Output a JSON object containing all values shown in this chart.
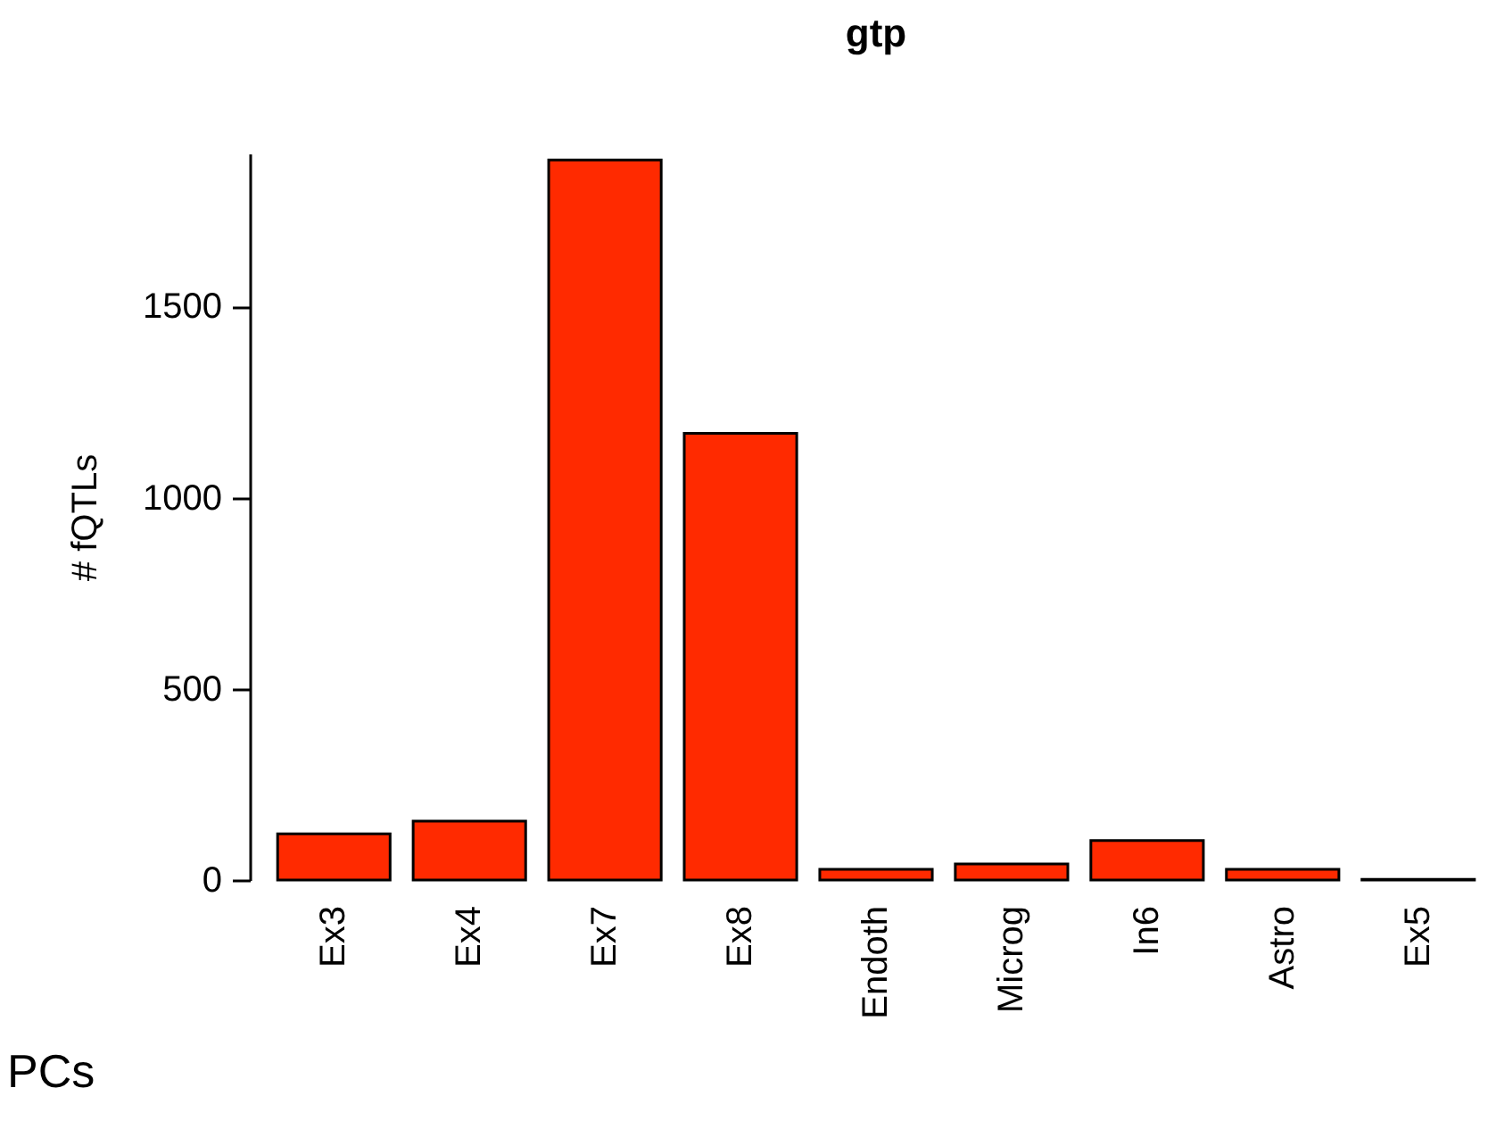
{
  "chart_data": {
    "type": "bar",
    "title": "gtp",
    "ylabel": "# fQTLs",
    "categories": [
      "Ex3",
      "Ex4",
      "Ex7",
      "Ex8",
      "Endoth",
      "Microg",
      "In6",
      "Astro",
      "Ex5"
    ],
    "values": [
      121,
      154,
      1883,
      1168,
      28,
      42,
      103,
      28,
      2
    ],
    "color": "#ff2a00",
    "ylim": [
      0,
      1900
    ],
    "yticks": [
      0,
      500,
      1000,
      1500
    ],
    "grid": false,
    "annotations": [
      "PCs"
    ]
  }
}
